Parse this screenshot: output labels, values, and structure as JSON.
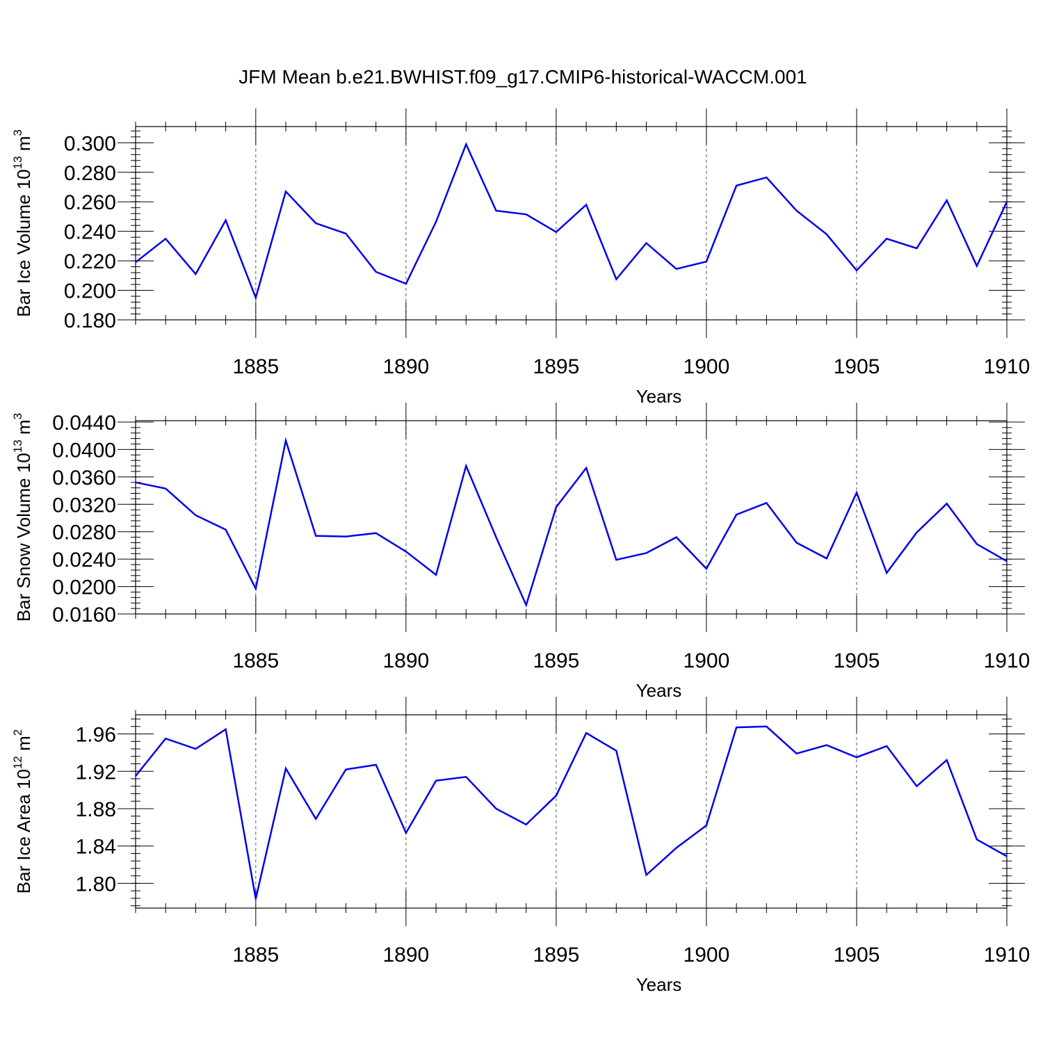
{
  "title": "JFM Mean b.e21.BWHIST.f09_g17.CMIP6-historical-WACCM.001",
  "line_color": "#0000ee",
  "chart_data": [
    {
      "type": "line",
      "ylabel": "Bar Ice Volume 10",
      "ylabel_exp": "13",
      "ylabel_unit": " m",
      "ylabel_unit_exp": "3",
      "xlabel": "Years",
      "xlim": [
        1881,
        1910
      ],
      "ylim": [
        0.18,
        0.311
      ],
      "yticks": [
        0.18,
        0.2,
        0.22,
        0.24,
        0.26,
        0.28,
        0.3
      ],
      "ytick_labels": [
        "0.180",
        "0.200",
        "0.220",
        "0.240",
        "0.260",
        "0.280",
        "0.300"
      ],
      "yminor_step": 0.004,
      "xticks": [
        1885,
        1890,
        1895,
        1900,
        1905,
        1910
      ],
      "xtick_labels": [
        "1885",
        "1890",
        "1895",
        "1900",
        "1905",
        "1910"
      ],
      "x": [
        1881,
        1882,
        1883,
        1884,
        1885,
        1886,
        1887,
        1888,
        1889,
        1890,
        1891,
        1892,
        1893,
        1894,
        1895,
        1896,
        1897,
        1898,
        1899,
        1900,
        1901,
        1902,
        1903,
        1904,
        1905,
        1906,
        1907,
        1908,
        1909,
        1910
      ],
      "values": [
        0.219,
        0.235,
        0.211,
        0.2475,
        0.195,
        0.267,
        0.2455,
        0.2385,
        0.2125,
        0.2045,
        0.2465,
        0.299,
        0.254,
        0.2515,
        0.2395,
        0.258,
        0.2075,
        0.232,
        0.2145,
        0.2195,
        0.271,
        0.2765,
        0.254,
        0.238,
        0.2135,
        0.235,
        0.2285,
        0.261,
        0.2165,
        0.26
      ]
    },
    {
      "type": "line",
      "ylabel": "Bar Snow Volume 10",
      "ylabel_exp": "13",
      "ylabel_unit": " m",
      "ylabel_unit_exp": "3",
      "xlabel": "Years",
      "xlim": [
        1881,
        1910
      ],
      "ylim": [
        0.016,
        0.0442
      ],
      "yticks": [
        0.016,
        0.02,
        0.024,
        0.028,
        0.032,
        0.036,
        0.04,
        0.044
      ],
      "ytick_labels": [
        "0.0160",
        "0.0200",
        "0.0240",
        "0.0280",
        "0.0320",
        "0.0360",
        "0.0400",
        "0.0440"
      ],
      "yminor_step": 0.0008,
      "xticks": [
        1885,
        1890,
        1895,
        1900,
        1905,
        1910
      ],
      "xtick_labels": [
        "1885",
        "1890",
        "1895",
        "1900",
        "1905",
        "1910"
      ],
      "x": [
        1881,
        1882,
        1883,
        1884,
        1885,
        1886,
        1887,
        1888,
        1889,
        1890,
        1891,
        1892,
        1893,
        1894,
        1895,
        1896,
        1897,
        1898,
        1899,
        1900,
        1901,
        1902,
        1903,
        1904,
        1905,
        1906,
        1907,
        1908,
        1909,
        1910
      ],
      "values": [
        0.0352,
        0.0343,
        0.0304,
        0.0283,
        0.0197,
        0.0413,
        0.0274,
        0.0273,
        0.0278,
        0.0251,
        0.0217,
        0.0376,
        0.0272,
        0.0173,
        0.0316,
        0.0373,
        0.0239,
        0.0249,
        0.0272,
        0.0226,
        0.0305,
        0.0322,
        0.0264,
        0.0241,
        0.0337,
        0.022,
        0.0279,
        0.0321,
        0.0262,
        0.0237
      ]
    },
    {
      "type": "line",
      "ylabel": "Bar Ice Area 10",
      "ylabel_exp": "12",
      "ylabel_unit": " m",
      "ylabel_unit_exp": "2",
      "xlabel": "Years",
      "xlim": [
        1881,
        1910
      ],
      "ylim": [
        1.7735,
        1.9805
      ],
      "yticks": [
        1.8,
        1.84,
        1.88,
        1.92,
        1.96
      ],
      "ytick_labels": [
        "1.80",
        "1.84",
        "1.88",
        "1.92",
        "1.96"
      ],
      "yminor_step": 0.008,
      "xticks": [
        1885,
        1890,
        1895,
        1900,
        1905,
        1910
      ],
      "xtick_labels": [
        "1885",
        "1890",
        "1895",
        "1900",
        "1905",
        "1910"
      ],
      "x": [
        1881,
        1882,
        1883,
        1884,
        1885,
        1886,
        1887,
        1888,
        1889,
        1890,
        1891,
        1892,
        1893,
        1894,
        1895,
        1896,
        1897,
        1898,
        1899,
        1900,
        1901,
        1902,
        1903,
        1904,
        1905,
        1906,
        1907,
        1908,
        1909,
        1910
      ],
      "values": [
        1.915,
        1.955,
        1.944,
        1.965,
        1.7835,
        1.923,
        1.869,
        1.922,
        1.927,
        1.854,
        1.91,
        1.914,
        1.88,
        1.863,
        1.894,
        1.961,
        1.942,
        1.809,
        1.838,
        1.862,
        1.967,
        1.968,
        1.939,
        1.948,
        1.935,
        1.947,
        1.904,
        1.932,
        1.847,
        1.829
      ]
    }
  ]
}
